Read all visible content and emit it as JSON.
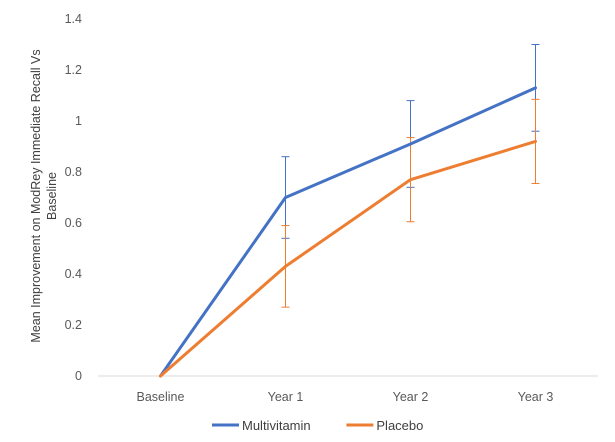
{
  "chart_data": {
    "type": "line",
    "title": "",
    "xlabel": "",
    "ylabel": "Mean Improvement on ModRey Immediate Recall Vs Baseline",
    "categories": [
      "Baseline",
      "Year 1",
      "Year 2",
      "Year 3"
    ],
    "ylim": [
      0,
      1.4
    ],
    "yticks": [
      0,
      0.2,
      0.4,
      0.6,
      0.8,
      1,
      1.2,
      1.4
    ],
    "grid": false,
    "legend": "bottom",
    "series": [
      {
        "name": "Multivitamin",
        "color": "#4472C4",
        "values": [
          0,
          0.7,
          0.91,
          1.13
        ],
        "error": [
          0,
          0.16,
          0.17,
          0.17
        ]
      },
      {
        "name": "Placebo",
        "color": "#ED7D31",
        "values": [
          0,
          0.43,
          0.77,
          0.92
        ],
        "error": [
          0,
          0.16,
          0.165,
          0.165
        ]
      }
    ]
  }
}
